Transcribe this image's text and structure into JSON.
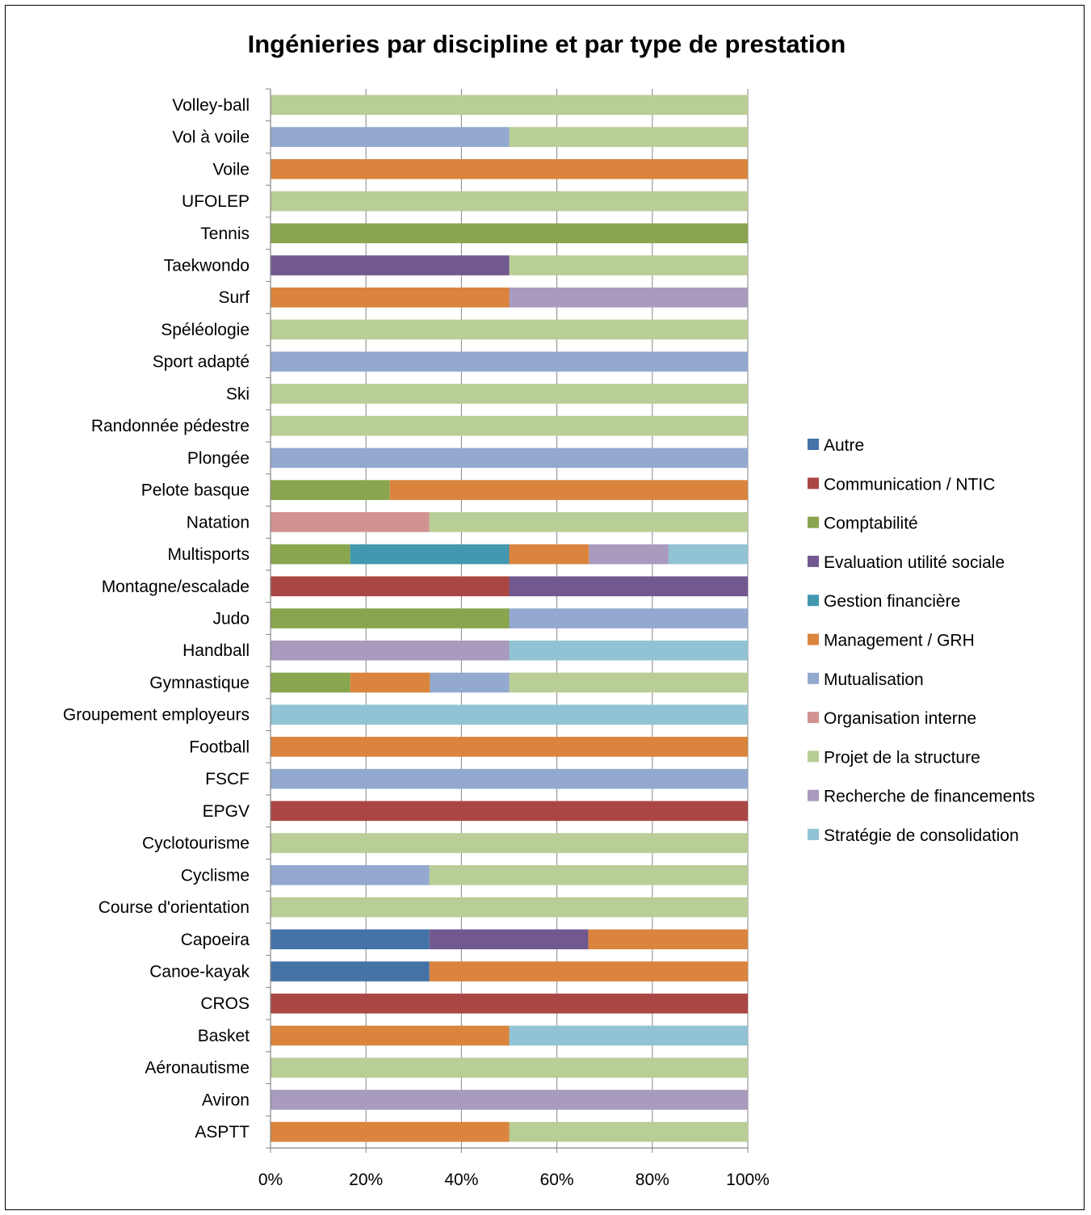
{
  "colors": {
    "background": "#ffffff",
    "grid": "#868686",
    "axis": "#868686"
  },
  "chart_data": {
    "type": "bar",
    "orientation": "horizontal",
    "stacked": "percent",
    "title": "Ingénieries par discipline et par type de prestation",
    "xlabel": "",
    "ylabel": "",
    "xlim": [
      0,
      100
    ],
    "x_ticks": [
      "0%",
      "20%",
      "40%",
      "60%",
      "80%",
      "100%"
    ],
    "grid": "vertical",
    "legend_position": "right",
    "categories": [
      "Volley-ball",
      "Vol à voile",
      "Voile",
      "UFOLEP",
      "Tennis",
      "Taekwondo",
      "Surf",
      "Spéléologie",
      "Sport adapté",
      "Ski",
      "Randonnée pédestre",
      "Plongée",
      "Pelote basque",
      "Natation",
      "Multisports",
      "Montagne/escalade",
      "Judo",
      "Handball",
      "Gymnastique",
      "Groupement employeurs",
      "Football",
      "FSCF",
      "EPGV",
      "Cyclotourisme",
      "Cyclisme",
      "Course d'orientation",
      "Capoeira",
      "Canoe-kayak",
      "CROS",
      "Basket",
      "Aéronautisme",
      "Aviron",
      "ASPTT"
    ],
    "series": [
      {
        "name": "Autre",
        "color": "#4572a7",
        "values": [
          0,
          0,
          0,
          0,
          0,
          0,
          0,
          0,
          0,
          0,
          0,
          0,
          0,
          0,
          0,
          0,
          0,
          0,
          0,
          0,
          0,
          0,
          0,
          0,
          0,
          0,
          33.3,
          33.3,
          0,
          0,
          0,
          0,
          0
        ]
      },
      {
        "name": "Communication / NTIC",
        "color": "#aa4643",
        "values": [
          0,
          0,
          0,
          0,
          0,
          0,
          0,
          0,
          0,
          0,
          0,
          0,
          0,
          0,
          0,
          50,
          0,
          0,
          0,
          0,
          0,
          0,
          100,
          0,
          0,
          0,
          0,
          0,
          100,
          0,
          0,
          0,
          0
        ]
      },
      {
        "name": "Comptabilité",
        "color": "#89a54e",
        "values": [
          0,
          0,
          0,
          0,
          100,
          0,
          0,
          0,
          0,
          0,
          0,
          0,
          25,
          0,
          16.7,
          0,
          50,
          0,
          16.7,
          0,
          0,
          0,
          0,
          0,
          0,
          0,
          0,
          0,
          0,
          0,
          0,
          0,
          0
        ]
      },
      {
        "name": "Evaluation utilité sociale",
        "color": "#71588f",
        "values": [
          0,
          0,
          0,
          0,
          0,
          50,
          0,
          0,
          0,
          0,
          0,
          0,
          0,
          0,
          0,
          50,
          0,
          0,
          0,
          0,
          0,
          0,
          0,
          0,
          0,
          0,
          33.3,
          0,
          0,
          0,
          0,
          0,
          0
        ]
      },
      {
        "name": "Gestion financière",
        "color": "#4198af",
        "values": [
          0,
          0,
          0,
          0,
          0,
          0,
          0,
          0,
          0,
          0,
          0,
          0,
          0,
          0,
          33.3,
          0,
          0,
          0,
          0,
          0,
          0,
          0,
          0,
          0,
          0,
          0,
          0,
          0,
          0,
          0,
          0,
          0,
          0
        ]
      },
      {
        "name": "Management / GRH",
        "color": "#db843d",
        "values": [
          0,
          0,
          100,
          0,
          0,
          0,
          50,
          0,
          0,
          0,
          0,
          0,
          75,
          0,
          16.7,
          0,
          0,
          0,
          16.7,
          0,
          100,
          0,
          0,
          0,
          0,
          0,
          33.4,
          66.7,
          0,
          50,
          0,
          0,
          50
        ]
      },
      {
        "name": "Mutualisation",
        "color": "#93a9cf",
        "values": [
          0,
          50,
          0,
          0,
          0,
          0,
          0,
          0,
          100,
          0,
          0,
          100,
          0,
          0,
          0,
          0,
          50,
          0,
          16.6,
          0,
          0,
          100,
          0,
          0,
          33.3,
          0,
          0,
          0,
          0,
          0,
          0,
          0,
          0
        ]
      },
      {
        "name": "Organisation interne",
        "color": "#d19392",
        "values": [
          0,
          0,
          0,
          0,
          0,
          0,
          0,
          0,
          0,
          0,
          0,
          0,
          0,
          33.3,
          0,
          0,
          0,
          0,
          0,
          0,
          0,
          0,
          0,
          0,
          0,
          0,
          0,
          0,
          0,
          0,
          0,
          0,
          0
        ]
      },
      {
        "name": "Projet de la structure",
        "color": "#b9cd96",
        "values": [
          100,
          50,
          0,
          100,
          0,
          50,
          0,
          100,
          0,
          100,
          100,
          0,
          0,
          66.7,
          0,
          0,
          0,
          0,
          50,
          0,
          0,
          0,
          0,
          100,
          66.7,
          100,
          0,
          0,
          0,
          0,
          100,
          0,
          50
        ]
      },
      {
        "name": "Recherche de financements",
        "color": "#a99bbd",
        "values": [
          0,
          0,
          0,
          0,
          0,
          0,
          50,
          0,
          0,
          0,
          0,
          0,
          0,
          0,
          16.7,
          0,
          0,
          50,
          0,
          0,
          0,
          0,
          0,
          0,
          0,
          0,
          0,
          0,
          0,
          0,
          0,
          100,
          0
        ]
      },
      {
        "name": "Stratégie de consolidation",
        "color": "#92c3d4",
        "values": [
          0,
          0,
          0,
          0,
          0,
          0,
          0,
          0,
          0,
          0,
          0,
          0,
          0,
          0,
          16.6,
          0,
          0,
          50,
          0,
          100,
          0,
          0,
          0,
          0,
          0,
          0,
          0,
          0,
          0,
          50,
          0,
          0,
          0
        ]
      }
    ]
  }
}
